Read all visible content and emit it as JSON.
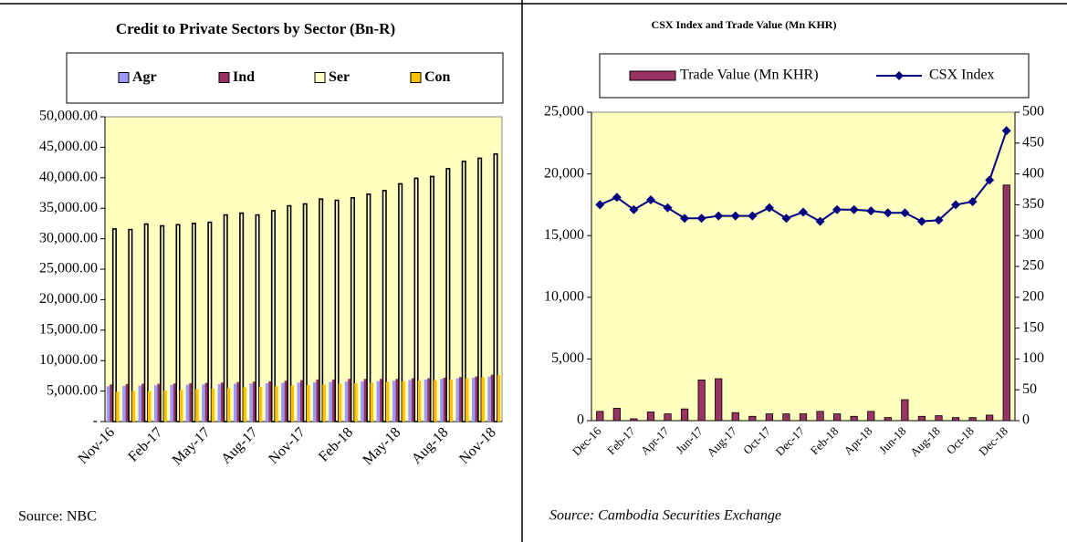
{
  "chart_data": [
    {
      "type": "bar",
      "title": "Credit to Private Sectors by Sector (Bn-R)",
      "source": "Source: NBC",
      "categories": [
        "Nov-16",
        null,
        null,
        "Feb-17",
        null,
        null,
        "May-17",
        null,
        null,
        "Aug-17",
        null,
        null,
        "Nov-17",
        null,
        null,
        "Feb-18",
        null,
        null,
        "May-18",
        null,
        null,
        "Aug-18",
        null,
        null,
        "Nov-18"
      ],
      "series": [
        {
          "name": "Agr",
          "color": "#9999ff",
          "values": [
            5800,
            5850,
            5900,
            5950,
            6000,
            6050,
            6100,
            6150,
            6200,
            6250,
            6300,
            6350,
            6400,
            6450,
            6500,
            6550,
            6600,
            6650,
            6700,
            6800,
            6900,
            7000,
            7100,
            7200,
            7400
          ]
        },
        {
          "name": "Ind",
          "color": "#993366",
          "values": [
            6100,
            6150,
            6200,
            6200,
            6250,
            6300,
            6350,
            6400,
            6500,
            6550,
            6600,
            6700,
            6800,
            6900,
            6900,
            7000,
            7000,
            7000,
            7000,
            7100,
            7100,
            7200,
            7300,
            7400,
            7700
          ]
        },
        {
          "name": "Ser",
          "color": "#ffffcc",
          "values": [
            31600,
            31500,
            32400,
            32100,
            32300,
            32500,
            32700,
            33900,
            34200,
            33900,
            34600,
            35400,
            35700,
            36500,
            36300,
            36700,
            37300,
            37900,
            39000,
            39900,
            40200,
            41500,
            42700,
            43200,
            43900
          ]
        },
        {
          "name": "Con",
          "color": "#ffc000",
          "values": [
            4900,
            5000,
            5000,
            5100,
            5200,
            5300,
            5400,
            5500,
            5600,
            5700,
            5800,
            5900,
            6000,
            6100,
            6200,
            6300,
            6400,
            6500,
            6600,
            6700,
            6800,
            6900,
            7100,
            7300,
            7600
          ]
        }
      ],
      "ylim": [
        0,
        50000
      ],
      "yticks": [
        {
          "value": 0,
          "label": "-"
        },
        {
          "value": 5000,
          "label": "5,000.00"
        },
        {
          "value": 10000,
          "label": "10,000.00"
        },
        {
          "value": 15000,
          "label": "15,000.00"
        },
        {
          "value": 20000,
          "label": "20,000.00"
        },
        {
          "value": 25000,
          "label": "25,000.00"
        },
        {
          "value": 30000,
          "label": "30,000.00"
        },
        {
          "value": 35000,
          "label": "35,000.00"
        },
        {
          "value": 40000,
          "label": "40,000.00"
        },
        {
          "value": 45000,
          "label": "45,000.00"
        },
        {
          "value": 50000,
          "label": "50,000.00"
        }
      ],
      "grid": false,
      "legend": "top"
    },
    {
      "type": "combo",
      "title": "CSX Index and Trade Value (Mn KHR)",
      "source": "Source: Cambodia Securities Exchange",
      "categories": [
        "Dec-16",
        null,
        "Feb-17",
        null,
        "Apr-17",
        null,
        "Jun-17",
        null,
        "Aug-17",
        null,
        "Oct-17",
        null,
        "Dec-17",
        null,
        "Feb-18",
        null,
        "Apr-18",
        null,
        "Jun-18",
        null,
        "Aug-18",
        null,
        "Oct-18",
        null,
        "Dec-18"
      ],
      "series": [
        {
          "name": "Trade Value (Mn KHR)",
          "color": "#993366",
          "kind": "bar",
          "values": [
            750,
            1000,
            150,
            700,
            550,
            950,
            3300,
            3400,
            650,
            350,
            550,
            550,
            550,
            750,
            550,
            350,
            750,
            250,
            1700,
            350,
            400,
            250,
            250,
            450,
            19100
          ]
        },
        {
          "name": "CSX Index",
          "color": "#000080",
          "kind": "line",
          "axis": "y2",
          "values": [
            350,
            362,
            342,
            358,
            345,
            328,
            328,
            332,
            332,
            332,
            345,
            328,
            338,
            323,
            342,
            342,
            340,
            337,
            337,
            323,
            325,
            350,
            355,
            390,
            470
          ]
        }
      ],
      "ylim": [
        0,
        25000
      ],
      "yticks": [
        0,
        {
          "value": 5000,
          "label": "5,000"
        },
        {
          "value": 10000,
          "label": "10,000"
        },
        {
          "value": 15000,
          "label": "15,000"
        },
        {
          "value": 20000,
          "label": "20,000"
        },
        {
          "value": 25000,
          "label": "25,000"
        }
      ],
      "y2lim": [
        0,
        500
      ],
      "y2ticks": [
        0,
        50,
        100,
        150,
        200,
        250,
        300,
        350,
        400,
        450,
        500
      ],
      "grid": false,
      "legend": "top"
    }
  ]
}
